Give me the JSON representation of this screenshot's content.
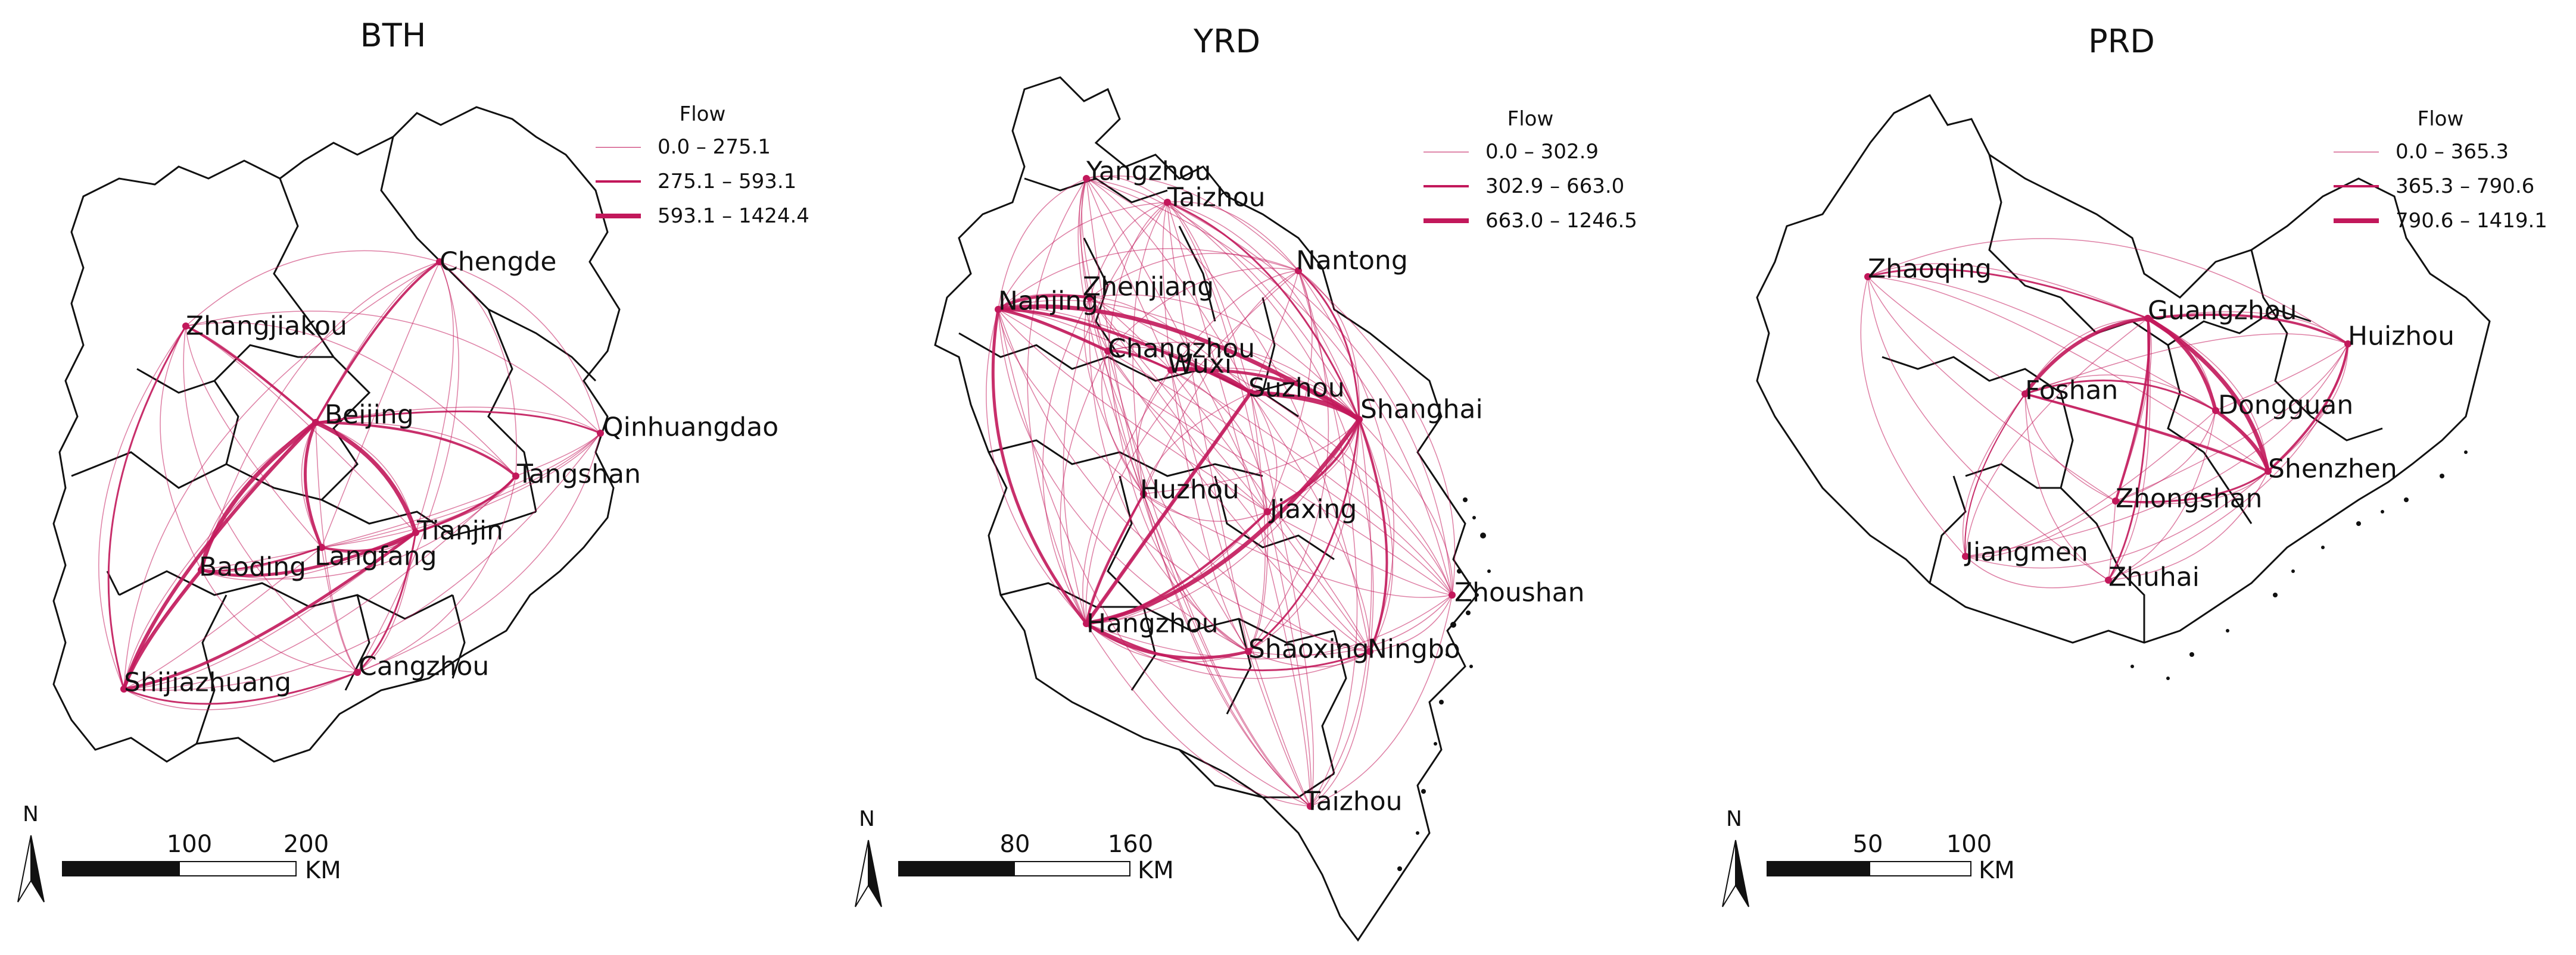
{
  "colors": {
    "flow": "#c2185b",
    "boundary": "#111111",
    "background": "#ffffff"
  },
  "legend_title": "Flow",
  "scale_unit": "KM",
  "north_label": "N",
  "panels": [
    {
      "title": "BTH",
      "legend": [
        "0.0 – 275.1",
        "275.1 – 593.1",
        "593.1 – 1424.4"
      ],
      "scale": [
        "100",
        "200"
      ],
      "cities": [
        "Chengde",
        "Zhangjiakou",
        "Beijing",
        "Qinhuangdao",
        "Tangshan",
        "Tianjin",
        "Langfang",
        "Baoding",
        "Shijiazhuang",
        "Cangzhou"
      ]
    },
    {
      "title": "YRD",
      "legend": [
        "0.0 – 302.9",
        "302.9 – 663.0",
        "663.0 – 1246.5"
      ],
      "scale": [
        "80",
        "160"
      ],
      "cities": [
        "Yangzhou",
        "Taizhou",
        "Nantong",
        "Nanjing",
        "Zhenjiang",
        "Changzhou",
        "Wuxi",
        "Suzhou",
        "Shanghai",
        "Huzhou",
        "Jiaxing",
        "Zhoushan",
        "Hangzhou",
        "Shaoxing",
        "Ningbo",
        "Taizhou"
      ]
    },
    {
      "title": "PRD",
      "legend": [
        "0.0 – 365.3",
        "365.3 – 790.6",
        "790.6 – 1419.1"
      ],
      "scale": [
        "50",
        "100"
      ],
      "cities": [
        "Zhaoqing",
        "Guangzhou",
        "Huizhou",
        "Foshan",
        "Dongguan",
        "Shenzhen",
        "Zhongshan",
        "Jiangmen",
        "Zhuhai"
      ]
    }
  ]
}
